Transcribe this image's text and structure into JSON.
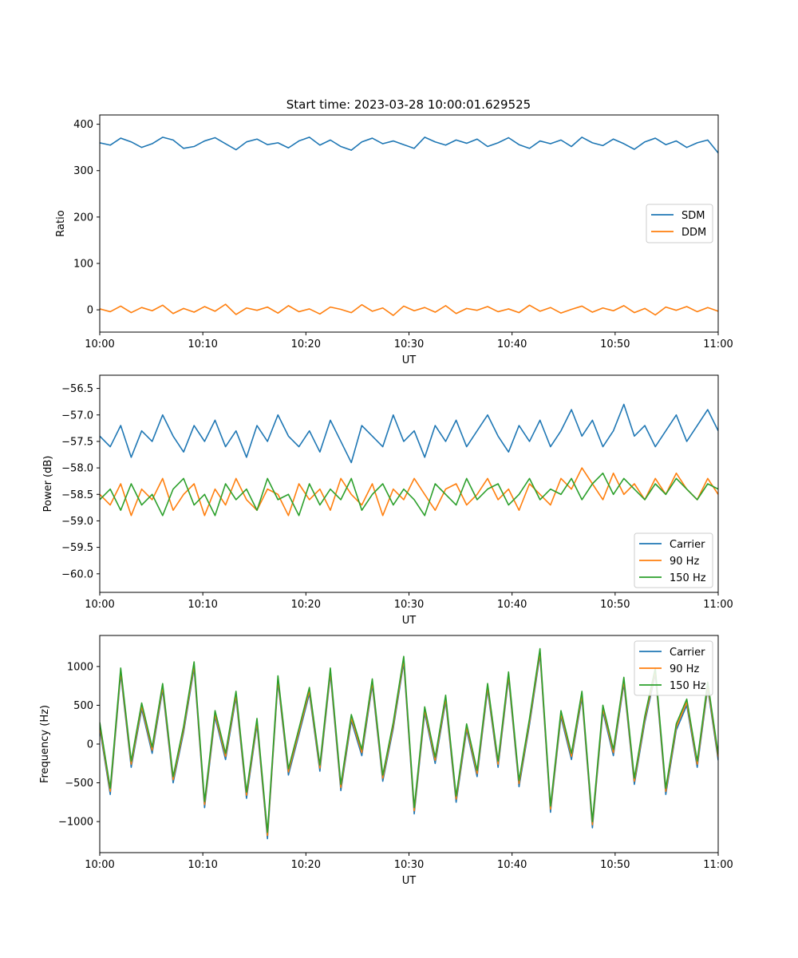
{
  "figure": {
    "title": "Start time: 2023-03-28 10:00:01.629525"
  },
  "chart_data": [
    {
      "type": "line",
      "xlabel": "UT",
      "ylabel": "Ratio",
      "xlim": [
        "10:00",
        "11:00"
      ],
      "ylim": [
        -48,
        420
      ],
      "xticks": [
        "10:00",
        "10:10",
        "10:20",
        "10:30",
        "10:40",
        "10:50",
        "11:00"
      ],
      "yticks": [
        0,
        100,
        200,
        300,
        400
      ],
      "ytick_labels": [
        "0",
        "100",
        "200",
        "300",
        "400"
      ],
      "legend": "center-right",
      "series": [
        {
          "name": "SDM",
          "color": "#1f77b4",
          "values": [
            360,
            355,
            370,
            362,
            350,
            358,
            372,
            366,
            348,
            352,
            364,
            371,
            358,
            345,
            362,
            368,
            356,
            360,
            349,
            364,
            372,
            355,
            366,
            352,
            344,
            362,
            370,
            358,
            364,
            356,
            348,
            372,
            362,
            355,
            366,
            359,
            368,
            352,
            360,
            371,
            356,
            348,
            364,
            358,
            366,
            352,
            372,
            360,
            354,
            368,
            358,
            346,
            362,
            370,
            356,
            364,
            350,
            360,
            366,
            338
          ]
        },
        {
          "name": "DDM",
          "color": "#ff7f0e",
          "values": [
            2,
            -4,
            8,
            -6,
            5,
            -2,
            10,
            -8,
            3,
            -5,
            7,
            -3,
            12,
            -10,
            4,
            -1,
            6,
            -7,
            9,
            -4,
            2,
            -9,
            6,
            1,
            -6,
            11,
            -3,
            4,
            -12,
            8,
            -2,
            5,
            -5,
            9,
            -8,
            3,
            -1,
            7,
            -4,
            2,
            -6,
            10,
            -3,
            5,
            -7,
            1,
            8,
            -5,
            4,
            -2,
            9,
            -6,
            3,
            -11,
            6,
            -1,
            7,
            -4,
            5,
            -3
          ]
        }
      ]
    },
    {
      "type": "line",
      "xlabel": "UT",
      "ylabel": "Power (dB)",
      "xlim": [
        "10:00",
        "11:00"
      ],
      "ylim": [
        -60.35,
        -56.25
      ],
      "xticks": [
        "10:00",
        "10:10",
        "10:20",
        "10:30",
        "10:40",
        "10:50",
        "11:00"
      ],
      "yticks": [
        -60.0,
        -59.5,
        -59.0,
        -58.5,
        -58.0,
        -57.5,
        -57.0,
        -56.5
      ],
      "ytick_labels": [
        "−60.0",
        "−59.5",
        "−59.0",
        "−58.5",
        "−58.0",
        "−57.5",
        "−57.0",
        "−56.5"
      ],
      "legend": "bottom-right",
      "series": [
        {
          "name": "Carrier",
          "color": "#1f77b4",
          "values": [
            -57.4,
            -57.6,
            -57.2,
            -57.8,
            -57.3,
            -57.5,
            -57.0,
            -57.4,
            -57.7,
            -57.2,
            -57.5,
            -57.1,
            -57.6,
            -57.3,
            -57.8,
            -57.2,
            -57.5,
            -57.0,
            -57.4,
            -57.6,
            -57.3,
            -57.7,
            -57.1,
            -57.5,
            -57.9,
            -57.2,
            -57.4,
            -57.6,
            -57.0,
            -57.5,
            -57.3,
            -57.8,
            -57.2,
            -57.5,
            -57.1,
            -57.6,
            -57.3,
            -57.0,
            -57.4,
            -57.7,
            -57.2,
            -57.5,
            -57.1,
            -57.6,
            -57.3,
            -56.9,
            -57.4,
            -57.1,
            -57.6,
            -57.3,
            -56.8,
            -57.4,
            -57.2,
            -57.6,
            -57.3,
            -57.0,
            -57.5,
            -57.2,
            -56.9,
            -57.3
          ]
        },
        {
          "name": "90 Hz",
          "color": "#ff7f0e",
          "values": [
            -58.5,
            -58.7,
            -58.3,
            -58.9,
            -58.4,
            -58.6,
            -58.2,
            -58.8,
            -58.5,
            -58.3,
            -58.9,
            -58.4,
            -58.7,
            -58.2,
            -58.6,
            -58.8,
            -58.4,
            -58.5,
            -58.9,
            -58.3,
            -58.6,
            -58.4,
            -58.8,
            -58.2,
            -58.5,
            -58.7,
            -58.3,
            -58.9,
            -58.4,
            -58.6,
            -58.2,
            -58.5,
            -58.8,
            -58.4,
            -58.3,
            -58.7,
            -58.5,
            -58.2,
            -58.6,
            -58.4,
            -58.8,
            -58.3,
            -58.5,
            -58.7,
            -58.2,
            -58.4,
            -58.0,
            -58.3,
            -58.6,
            -58.1,
            -58.5,
            -58.3,
            -58.6,
            -58.2,
            -58.5,
            -58.1,
            -58.4,
            -58.6,
            -58.2,
            -58.5
          ]
        },
        {
          "name": "150 Hz",
          "color": "#2ca02c",
          "values": [
            -58.6,
            -58.4,
            -58.8,
            -58.3,
            -58.7,
            -58.5,
            -58.9,
            -58.4,
            -58.2,
            -58.7,
            -58.5,
            -58.9,
            -58.3,
            -58.6,
            -58.4,
            -58.8,
            -58.2,
            -58.6,
            -58.5,
            -58.9,
            -58.3,
            -58.7,
            -58.4,
            -58.6,
            -58.2,
            -58.8,
            -58.5,
            -58.3,
            -58.7,
            -58.4,
            -58.6,
            -58.9,
            -58.3,
            -58.5,
            -58.7,
            -58.2,
            -58.6,
            -58.4,
            -58.3,
            -58.7,
            -58.5,
            -58.2,
            -58.6,
            -58.4,
            -58.5,
            -58.2,
            -58.6,
            -58.3,
            -58.1,
            -58.5,
            -58.2,
            -58.4,
            -58.6,
            -58.3,
            -58.5,
            -58.2,
            -58.4,
            -58.6,
            -58.3,
            -58.4
          ]
        }
      ]
    },
    {
      "type": "line",
      "xlabel": "UT",
      "ylabel": "Frequency (Hz)",
      "xlim": [
        "10:00",
        "11:00"
      ],
      "ylim": [
        -1400,
        1400
      ],
      "xticks": [
        "10:00",
        "10:10",
        "10:20",
        "10:30",
        "10:40",
        "10:50",
        "11:00"
      ],
      "yticks": [
        -1000,
        -500,
        0,
        500,
        1000
      ],
      "ytick_labels": [
        "−1000",
        "−500",
        "0",
        "500",
        "1000"
      ],
      "legend": "top-right",
      "series": [
        {
          "name": "Carrier",
          "color": "#1f77b4",
          "values": [
            200,
            -650,
            900,
            -300,
            450,
            -120,
            700,
            -500,
            150,
            980,
            -820,
            350,
            -200,
            600,
            -700,
            250,
            -1220,
            800,
            -400,
            120,
            650,
            -350,
            900,
            -600,
            300,
            -150,
            760,
            -480,
            200,
            1050,
            -900,
            400,
            -250,
            550,
            -750,
            180,
            -420,
            700,
            -300,
            850,
            -550,
            250,
            1150,
            -880,
            350,
            -200,
            600,
            -1080,
            420,
            -150,
            780,
            -520,
            280,
            900,
            -650,
            180,
            500,
            -300,
            720,
            -210
          ]
        },
        {
          "name": "90 Hz",
          "color": "#ff7f0e",
          "values": [
            240,
            -610,
            940,
            -260,
            490,
            -80,
            740,
            -460,
            190,
            1020,
            -780,
            390,
            -160,
            640,
            -660,
            290,
            -1180,
            840,
            -360,
            160,
            690,
            -310,
            940,
            -560,
            340,
            -110,
            800,
            -440,
            240,
            1090,
            -860,
            440,
            -210,
            590,
            -710,
            220,
            -380,
            740,
            -260,
            890,
            -510,
            290,
            1190,
            -840,
            390,
            -160,
            640,
            -1040,
            460,
            -110,
            820,
            -480,
            320,
            940,
            -610,
            220,
            540,
            -260,
            760,
            -170
          ]
        },
        {
          "name": "150 Hz",
          "color": "#2ca02c",
          "values": [
            280,
            -570,
            980,
            -220,
            530,
            -40,
            780,
            -420,
            230,
            1060,
            -740,
            430,
            -120,
            680,
            -620,
            330,
            -1140,
            880,
            -320,
            200,
            730,
            -270,
            980,
            -520,
            380,
            -70,
            840,
            -400,
            280,
            1130,
            -820,
            480,
            -170,
            630,
            -670,
            260,
            -340,
            780,
            -220,
            930,
            -470,
            330,
            1230,
            -800,
            430,
            -120,
            680,
            -1000,
            500,
            -70,
            860,
            -440,
            360,
            980,
            -570,
            260,
            580,
            -220,
            800,
            -130
          ]
        }
      ]
    }
  ]
}
